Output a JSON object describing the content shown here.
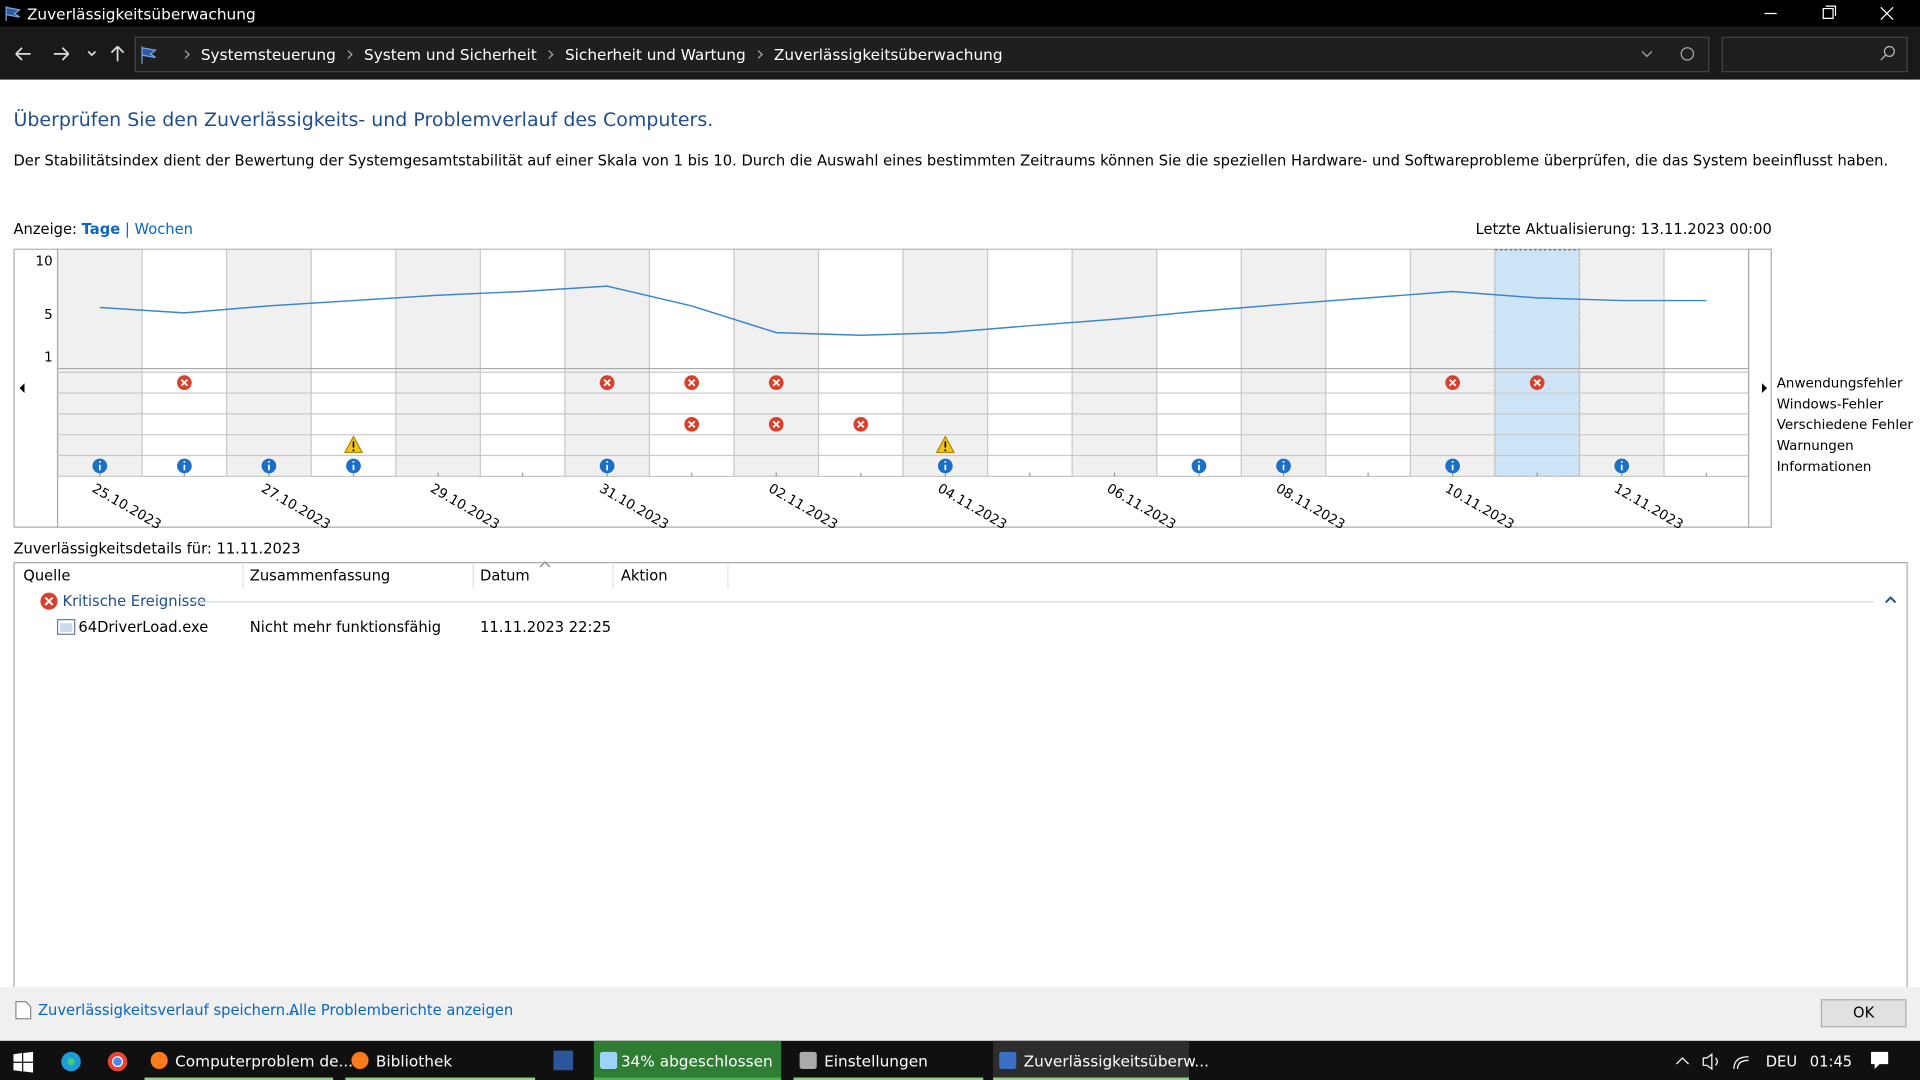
{
  "window": {
    "title": "Zuverlässigkeitsüberwachung"
  },
  "breadcrumb": [
    "Systemsteuerung",
    "System und Sicherheit",
    "Sicherheit und Wartung",
    "Zuverlässigkeitsüberwachung"
  ],
  "header": {
    "title": "Überprüfen Sie den Zuverlässigkeits- und Problemverlauf des Computers.",
    "description": "Der Stabilitätsindex dient der Bewertung der Systemgesamtstabilität auf einer Skala von 1 bis 10. Durch die Auswahl eines bestimmten Zeitraums können Sie die speziellen Hardware- und Softwareprobleme überprüfen, die das System beeinflusst haben."
  },
  "view": {
    "label": "Anzeige:",
    "options": [
      "Tage",
      "Wochen"
    ],
    "separator": "|",
    "last_update": "Letzte Aktualisierung: 13.11.2023 00:00"
  },
  "chart_data": {
    "type": "line",
    "color": "#3a86cf",
    "categories": [
      "25.10.2023",
      null,
      "27.10.2023",
      null,
      "29.10.2023",
      null,
      "31.10.2023",
      null,
      "02.11.2023",
      null,
      "04.11.2023",
      null,
      "06.11.2023",
      null,
      "08.11.2023",
      null,
      "10.11.2023",
      null,
      "12.11.2023",
      null
    ],
    "values": [
      5.6,
      5.1,
      5.75,
      6.25,
      6.75,
      7.1,
      7.6,
      5.75,
      3.25,
      3.0,
      3.25,
      3.9,
      4.5,
      5.25,
      5.9,
      6.5,
      7.1,
      6.5,
      6.25,
      6.25
    ],
    "ylim": [
      0,
      11
    ],
    "yticks": [
      1,
      5,
      10
    ],
    "selected_index": 17,
    "event_rows": [
      {
        "name": "Anwendungsfehler",
        "icon": "error",
        "days": [
          false,
          true,
          false,
          false,
          false,
          false,
          true,
          true,
          true,
          false,
          false,
          false,
          false,
          false,
          false,
          false,
          true,
          true,
          false,
          false
        ]
      },
      {
        "name": "Windows-Fehler",
        "icon": "error",
        "days": [
          false,
          false,
          false,
          false,
          false,
          false,
          false,
          false,
          false,
          false,
          false,
          false,
          false,
          false,
          false,
          false,
          false,
          false,
          false,
          false
        ]
      },
      {
        "name": "Verschiedene Fehler",
        "icon": "error",
        "days": [
          false,
          false,
          false,
          false,
          false,
          false,
          false,
          true,
          true,
          true,
          false,
          false,
          false,
          false,
          false,
          false,
          false,
          false,
          false,
          false
        ]
      },
      {
        "name": "Warnungen",
        "icon": "warning",
        "days": [
          false,
          false,
          false,
          true,
          false,
          false,
          false,
          false,
          false,
          false,
          true,
          false,
          false,
          false,
          false,
          false,
          false,
          false,
          false,
          false
        ]
      },
      {
        "name": "Informationen",
        "icon": "info",
        "days": [
          true,
          true,
          true,
          true,
          false,
          false,
          true,
          false,
          false,
          false,
          true,
          false,
          false,
          true,
          true,
          false,
          true,
          false,
          true,
          false
        ]
      }
    ]
  },
  "details": {
    "title": "Zuverlässigkeitsdetails für: 11.11.2023",
    "columns": [
      "Quelle",
      "Zusammenfassung",
      "Datum",
      "Aktion"
    ],
    "groups": [
      {
        "name": "Kritische Ereignisse",
        "rows": [
          [
            "64DriverLoad.exe",
            "Nicht mehr funktionsfähig",
            "11.11.2023 22:25"
          ]
        ]
      }
    ]
  },
  "footer": {
    "links": [
      "Zuverlässigkeitsverlauf speichern...",
      "Alle Problemberichte anzeigen"
    ],
    "ok": "OK"
  },
  "taskbar": {
    "items": [
      "Computerproblem de...",
      "Bibliothek",
      "34% abgeschlossen",
      "Einstellungen",
      "Zuverlässigkeitsüberw..."
    ],
    "language": "DEU",
    "time": "01:45"
  }
}
